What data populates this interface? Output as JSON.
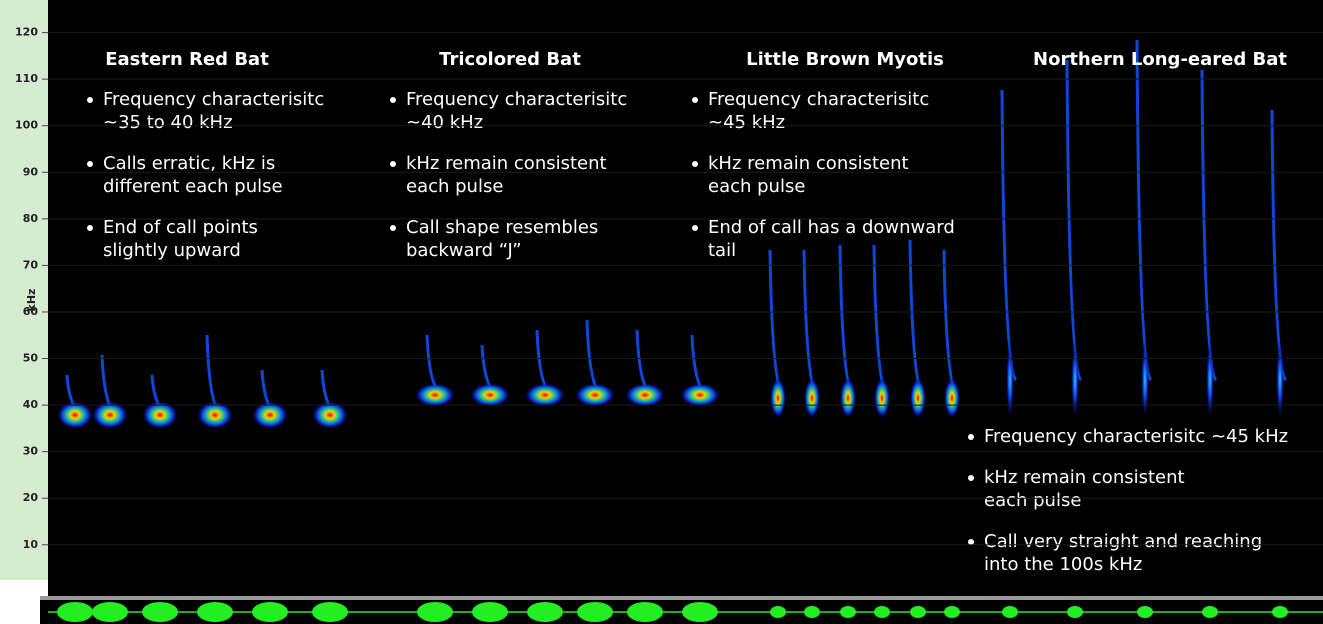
{
  "axis": {
    "label": "kHz",
    "ticks": [
      10,
      20,
      30,
      40,
      50,
      60,
      70,
      80,
      90,
      100,
      110,
      120
    ],
    "ylim": [
      -1,
      127
    ]
  },
  "bats": [
    {
      "title": "Eastern Red Bat",
      "bullets": [
        [
          "Frequency characterisitc",
          "~35 to 40 kHz"
        ],
        [
          "Calls erratic, kHz is",
          "different each pulse"
        ],
        [
          "End of call points",
          "slightly upward"
        ]
      ]
    },
    {
      "title": "Tricolored Bat",
      "bullets": [
        [
          "Frequency characterisitc",
          "~40 kHz"
        ],
        [
          "kHz remain consistent",
          "each pulse"
        ],
        [
          "Call shape resembles",
          "backward “J”"
        ]
      ]
    },
    {
      "title": "Little Brown Myotis",
      "bullets": [
        [
          "Frequency characterisitc",
          "~45 kHz"
        ],
        [
          "kHz remain consistent",
          "each pulse"
        ],
        [
          "End of call has a downward",
          "tail"
        ]
      ]
    },
    {
      "title": "Northern Long-eared Bat",
      "bullets": [
        [
          "Frequency characterisitc ~45 kHz"
        ],
        [
          "kHz remain consistent",
          "each pulse"
        ],
        [
          "Call very straight and reaching",
          "into the 100s kHz"
        ]
      ]
    }
  ]
}
